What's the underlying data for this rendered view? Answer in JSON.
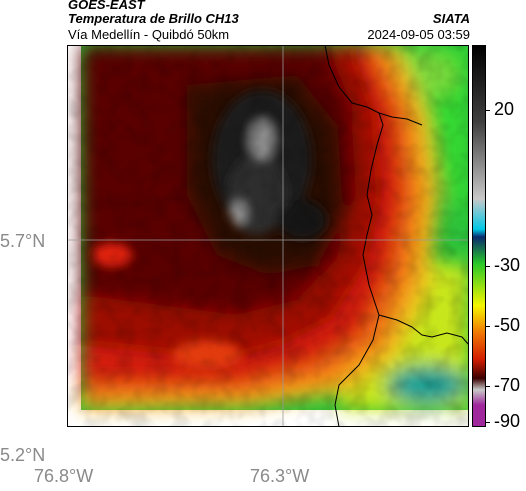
{
  "header": {
    "satellite": "GOES-EAST",
    "product": "Temperatura de Brillo CH13",
    "region": "Vía Medellín - Quibdó 50km",
    "organization": "SIATA",
    "timestamp": "2024-09-05 03:59"
  },
  "map": {
    "lat_labels": [
      "5.7°N",
      "5.2°N"
    ],
    "lon_labels": [
      "76.8°W",
      "76.3°W"
    ]
  },
  "colorbar": {
    "labels": [
      "20",
      "-30",
      "-50",
      "-70",
      "-90"
    ],
    "unit_range": [
      -93,
      38
    ],
    "colors": {
      "black": "#000000",
      "dark_gray": "#404040",
      "light_gray": "#c8c8c8",
      "cyan": "#00c8e6",
      "dark_blue": "#0a2a6e",
      "green": "#28c828",
      "yellow": "#f5f500",
      "orange": "#f07800",
      "red": "#d21e00",
      "dark_red": "#3c0000",
      "magenta": "#a0289c"
    }
  }
}
